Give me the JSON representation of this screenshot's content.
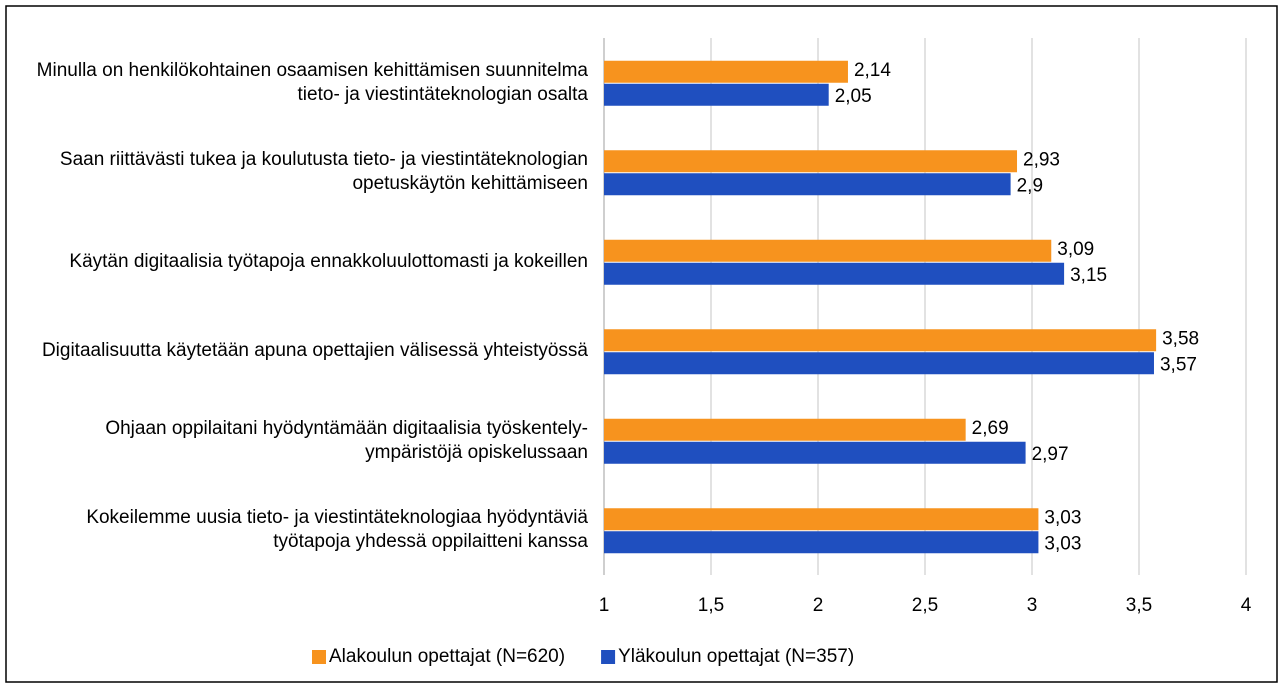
{
  "chart_data": {
    "type": "bar",
    "orientation": "horizontal",
    "categories": [
      "Minulla on henkilökohtainen osaamisen kehittämisen suunnitelma tieto- ja viestintäteknologian osalta",
      "Saan riittävästi tukea ja koulutusta tieto- ja viestintäteknologian opetuskäytön kehittämiseen",
      "Käytän digitaalisia työtapoja ennakkoluulottomasti ja kokeillen",
      "Digitaalisuutta käytetään apuna opettajien välisessä yhteistyössä",
      "Ohjaan oppilaitani hyödyntämään digitaalisia työskentely-ympäristöjä opiskelussaan",
      "Kokeilemme uusia tieto- ja viestintäteknologiaa hyödyntäviä työtapoja yhdessä oppilaitteni kanssa"
    ],
    "series": [
      {
        "name": "Alakoulun opettajat (N=620)",
        "color": "#f7931e",
        "values": [
          2.14,
          2.93,
          3.09,
          3.58,
          2.69,
          3.03
        ],
        "value_labels": [
          "2,14",
          "2,93",
          "3,09",
          "3,58",
          "2,69",
          "3,03"
        ]
      },
      {
        "name": "Yläkoulun opettajat (N=357)",
        "color": "#1f4fbf",
        "values": [
          2.05,
          2.9,
          3.15,
          3.57,
          2.97,
          3.03
        ],
        "value_labels": [
          "2,05",
          "2,9",
          "3,15",
          "3,57",
          "2,97",
          "3,03"
        ]
      }
    ],
    "xlim": [
      1,
      4
    ],
    "xticks": [
      1,
      {
        "value": 1.5,
        "label": "1,5"
      },
      2,
      {
        "value": 2.5,
        "label": "2,5"
      },
      3,
      {
        "value": 3.5,
        "label": "3,5"
      },
      4
    ],
    "grid": true,
    "legend": "bottom"
  }
}
